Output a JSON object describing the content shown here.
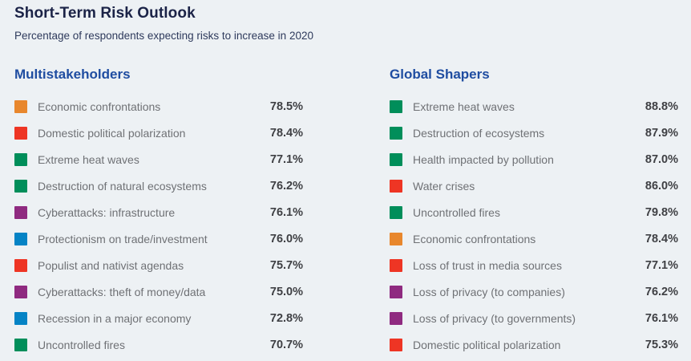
{
  "title": "Short-Term Risk Outlook",
  "subtitle": "Percentage of respondents expecting risks to increase in 2020",
  "palette": {
    "economic": "#E8872D",
    "societal": "#EE3524",
    "environmental": "#008E5A",
    "technological": "#8F2A80",
    "geopolitical": "#0583C5"
  },
  "columns": [
    {
      "heading": "Multistakeholders",
      "items": [
        {
          "label": "Economic confrontations",
          "value": "78.5%",
          "category": "economic",
          "color": "#E8872D"
        },
        {
          "label": "Domestic political polarization",
          "value": "78.4%",
          "category": "societal",
          "color": "#EE3524"
        },
        {
          "label": "Extreme heat waves",
          "value": "77.1%",
          "category": "environmental",
          "color": "#008E5A"
        },
        {
          "label": "Destruction of natural ecosystems",
          "value": "76.2%",
          "category": "environmental",
          "color": "#008E5A"
        },
        {
          "label": "Cyberattacks: infrastructure",
          "value": "76.1%",
          "category": "technological",
          "color": "#8F2A80"
        },
        {
          "label": "Protectionism on trade/investment",
          "value": "76.0%",
          "category": "geopolitical",
          "color": "#0583C5"
        },
        {
          "label": "Populist and nativist agendas",
          "value": "75.7%",
          "category": "societal",
          "color": "#EE3524"
        },
        {
          "label": "Cyberattacks: theft of money/data",
          "value": "75.0%",
          "category": "technological",
          "color": "#8F2A80"
        },
        {
          "label": "Recession in a major economy",
          "value": "72.8%",
          "category": "geopolitical",
          "color": "#0583C5"
        },
        {
          "label": "Uncontrolled fires",
          "value": "70.7%",
          "category": "environmental",
          "color": "#008E5A"
        }
      ]
    },
    {
      "heading": "Global Shapers",
      "items": [
        {
          "label": "Extreme heat waves",
          "value": "88.8%",
          "category": "environmental",
          "color": "#008E5A"
        },
        {
          "label": "Destruction of ecosystems",
          "value": "87.9%",
          "category": "environmental",
          "color": "#008E5A"
        },
        {
          "label": "Health impacted by pollution",
          "value": "87.0%",
          "category": "environmental",
          "color": "#008E5A"
        },
        {
          "label": "Water crises",
          "value": "86.0%",
          "category": "societal",
          "color": "#EE3524"
        },
        {
          "label": "Uncontrolled fires",
          "value": "79.8%",
          "category": "environmental",
          "color": "#008E5A"
        },
        {
          "label": "Economic confrontations",
          "value": "78.4%",
          "category": "economic",
          "color": "#E8872D"
        },
        {
          "label": "Loss of trust in media sources",
          "value": "77.1%",
          "category": "societal",
          "color": "#EE3524"
        },
        {
          "label": "Loss of privacy (to companies)",
          "value": "76.2%",
          "category": "technological",
          "color": "#8F2A80"
        },
        {
          "label": "Loss of privacy (to governments)",
          "value": "76.1%",
          "category": "technological",
          "color": "#8F2A80"
        },
        {
          "label": "Domestic political polarization",
          "value": "75.3%",
          "category": "societal",
          "color": "#EE3524"
        }
      ]
    }
  ],
  "chart_data": {
    "type": "table",
    "title": "Short-Term Risk Outlook",
    "subtitle": "Percentage of respondents expecting risks to increase in 2020",
    "unit": "%",
    "legend_position": "none",
    "groups": [
      {
        "name": "Multistakeholders",
        "categories": [
          "Economic confrontations",
          "Domestic political polarization",
          "Extreme heat waves",
          "Destruction of natural ecosystems",
          "Cyberattacks: infrastructure",
          "Protectionism on trade/investment",
          "Populist and nativist agendas",
          "Cyberattacks: theft of money/data",
          "Recession in a major economy",
          "Uncontrolled fires"
        ],
        "values": [
          78.5,
          78.4,
          77.1,
          76.2,
          76.1,
          76.0,
          75.7,
          75.0,
          72.8,
          70.7
        ],
        "risk_types": [
          "economic",
          "societal",
          "environmental",
          "environmental",
          "technological",
          "geopolitical",
          "societal",
          "technological",
          "geopolitical",
          "environmental"
        ]
      },
      {
        "name": "Global Shapers",
        "categories": [
          "Extreme heat waves",
          "Destruction of ecosystems",
          "Health impacted by pollution",
          "Water crises",
          "Uncontrolled fires",
          "Economic confrontations",
          "Loss of trust in media sources",
          "Loss of privacy (to companies)",
          "Loss of privacy (to governments)",
          "Domestic political polarization"
        ],
        "values": [
          88.8,
          87.9,
          87.0,
          86.0,
          79.8,
          78.4,
          77.1,
          76.2,
          76.1,
          75.3
        ],
        "risk_types": [
          "environmental",
          "environmental",
          "environmental",
          "societal",
          "environmental",
          "economic",
          "societal",
          "technological",
          "technological",
          "societal"
        ]
      }
    ]
  }
}
